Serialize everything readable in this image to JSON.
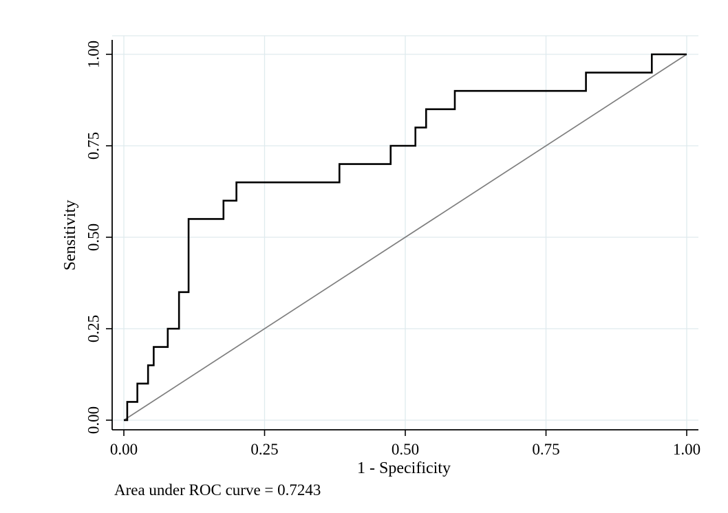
{
  "figure": {
    "background": "#ffffff"
  },
  "chart_data": {
    "type": "line",
    "subtype": "roc-step-curve",
    "title": "",
    "xlabel": "1 - Specificity",
    "ylabel": "Sensitivity",
    "caption": "Area under ROC curve = 0.7243",
    "auc": 0.7243,
    "xlim": [
      0,
      1
    ],
    "ylim": [
      0,
      1
    ],
    "grid": true,
    "legend": "none",
    "x_ticks": [
      0.0,
      0.25,
      0.5,
      0.75,
      1.0
    ],
    "y_ticks": [
      0.0,
      0.25,
      0.5,
      0.75,
      1.0
    ],
    "x_tick_labels": [
      "0.00",
      "0.25",
      "0.50",
      "0.75",
      "1.00"
    ],
    "y_tick_labels": [
      "0.00",
      "0.25",
      "0.50",
      "0.75",
      "1.00"
    ],
    "series": [
      {
        "name": "ROC curve",
        "style": "step",
        "color": "#000000",
        "stroke_width": 2.6,
        "points": [
          [
            0.0,
            0.0
          ],
          [
            0.006,
            0.05
          ],
          [
            0.024,
            0.1
          ],
          [
            0.043,
            0.15
          ],
          [
            0.053,
            0.2
          ],
          [
            0.078,
            0.25
          ],
          [
            0.098,
            0.35
          ],
          [
            0.115,
            0.55
          ],
          [
            0.177,
            0.6
          ],
          [
            0.2,
            0.65
          ],
          [
            0.383,
            0.7
          ],
          [
            0.474,
            0.75
          ],
          [
            0.518,
            0.8
          ],
          [
            0.537,
            0.85
          ],
          [
            0.588,
            0.9
          ],
          [
            0.821,
            0.95
          ],
          [
            0.938,
            1.0
          ],
          [
            1.0,
            1.0
          ]
        ]
      },
      {
        "name": "Chance reference line",
        "style": "straight",
        "color": "#7e7e7e",
        "stroke_width": 1.7,
        "points": [
          [
            0,
            0
          ],
          [
            1,
            1
          ]
        ]
      }
    ],
    "colors": {
      "grid": "#dfeaee",
      "axis": "#000000",
      "text": "#000000"
    }
  }
}
